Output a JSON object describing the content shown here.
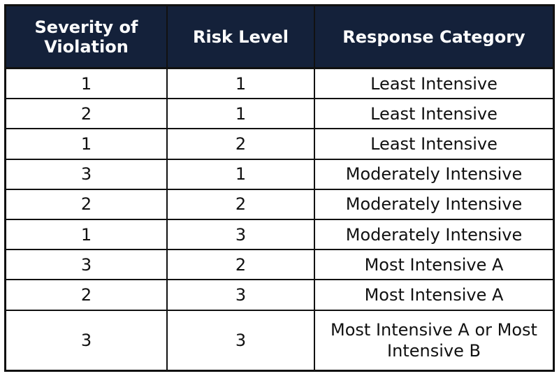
{
  "table": {
    "headers": [
      "Severity of Violation",
      "Risk Level",
      "Response Category"
    ],
    "rows": [
      [
        "1",
        "1",
        "Least Intensive"
      ],
      [
        "2",
        "1",
        "Least Intensive"
      ],
      [
        "1",
        "2",
        "Least Intensive"
      ],
      [
        "3",
        "1",
        "Moderately Intensive"
      ],
      [
        "2",
        "2",
        "Moderately Intensive"
      ],
      [
        "1",
        "3",
        "Moderately Intensive"
      ],
      [
        "3",
        "2",
        "Most Intensive A"
      ],
      [
        "2",
        "3",
        "Most Intensive A"
      ],
      [
        "3",
        "3",
        "Most Intensive A or Most Intensive B"
      ]
    ]
  },
  "colors": {
    "header_background": "#14213a",
    "header_text": "#ffffff",
    "border": "#111111",
    "cell_background": "#ffffff"
  }
}
